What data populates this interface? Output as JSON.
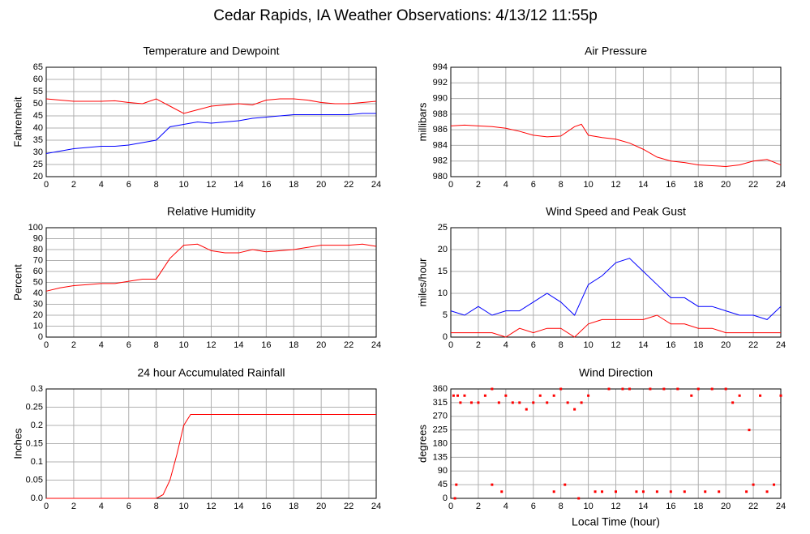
{
  "title": "Cedar Rapids, IA Weather Observations: 4/13/12 11:55p",
  "chart_data": [
    {
      "type": "line",
      "title": "Temperature and Dewpoint",
      "ylabel": "Fahrenheit",
      "x": [
        0,
        1,
        2,
        3,
        4,
        5,
        6,
        7,
        8,
        9,
        10,
        11,
        12,
        13,
        14,
        15,
        16,
        17,
        18,
        19,
        20,
        21,
        22,
        23,
        24
      ],
      "series": [
        {
          "color": "#ff0000",
          "values": [
            52,
            51.5,
            51,
            51,
            51,
            51.2,
            50.5,
            50,
            52,
            49,
            46,
            47.5,
            49,
            49.5,
            50,
            49.5,
            51.5,
            52,
            52,
            51.5,
            50.5,
            50,
            50,
            50.5,
            51
          ]
        },
        {
          "color": "#0000ff",
          "values": [
            29.5,
            30.5,
            31.5,
            32,
            32.5,
            32.5,
            33,
            34,
            35,
            40.5,
            41.5,
            42.5,
            42,
            42.5,
            43,
            44,
            44.5,
            45,
            45.5,
            45.5,
            45.5,
            45.5,
            45.5,
            46,
            46
          ]
        }
      ],
      "xlim": [
        0,
        24
      ],
      "xticks": [
        0,
        2,
        4,
        6,
        8,
        10,
        12,
        14,
        16,
        18,
        20,
        22,
        24
      ],
      "ylim": [
        20,
        65
      ],
      "yticks": [
        20,
        25,
        30,
        35,
        40,
        45,
        50,
        55,
        60,
        65
      ],
      "grid": true
    },
    {
      "type": "line",
      "title": "Air Pressure",
      "ylabel": "millibars",
      "x": [
        0,
        1,
        2,
        3,
        4,
        5,
        6,
        7,
        8,
        9,
        9.5,
        10,
        11,
        12,
        13,
        14,
        15,
        16,
        17,
        18,
        19,
        20,
        21,
        22,
        23,
        24
      ],
      "series": [
        {
          "color": "#ff0000",
          "values": [
            986.5,
            986.6,
            986.5,
            986.4,
            986.2,
            985.8,
            985.3,
            985.1,
            985.2,
            986.4,
            986.7,
            985.3,
            985.0,
            984.8,
            984.3,
            983.5,
            982.5,
            982.0,
            981.8,
            981.5,
            981.4,
            981.3,
            981.5,
            982.0,
            982.2,
            981.5
          ]
        }
      ],
      "xlim": [
        0,
        24
      ],
      "xticks": [
        0,
        2,
        4,
        6,
        8,
        10,
        12,
        14,
        16,
        18,
        20,
        22,
        24
      ],
      "ylim": [
        980,
        994
      ],
      "yticks": [
        980,
        982,
        984,
        986,
        988,
        990,
        992,
        994
      ],
      "grid": true
    },
    {
      "type": "line",
      "title": "Relative Humidity",
      "ylabel": "Percent",
      "x": [
        0,
        1,
        2,
        3,
        4,
        5,
        6,
        7,
        8,
        9,
        10,
        11,
        12,
        13,
        14,
        15,
        16,
        17,
        18,
        19,
        20,
        21,
        22,
        23,
        24
      ],
      "series": [
        {
          "color": "#ff0000",
          "values": [
            42,
            45,
            47,
            48,
            49,
            49,
            51,
            53,
            53,
            72,
            84,
            85,
            79,
            77,
            77,
            80,
            78,
            79,
            80,
            82,
            84,
            84,
            84,
            85,
            83
          ]
        }
      ],
      "xlim": [
        0,
        24
      ],
      "xticks": [
        0,
        2,
        4,
        6,
        8,
        10,
        12,
        14,
        16,
        18,
        20,
        22,
        24
      ],
      "ylim": [
        0,
        100
      ],
      "yticks": [
        0,
        10,
        20,
        30,
        40,
        50,
        60,
        70,
        80,
        90,
        100
      ],
      "grid": true
    },
    {
      "type": "line",
      "title": "Wind Speed and Peak Gust",
      "ylabel": "miles/hour",
      "x": [
        0,
        1,
        2,
        3,
        4,
        5,
        6,
        7,
        8,
        9,
        10,
        11,
        12,
        13,
        14,
        15,
        16,
        17,
        18,
        19,
        20,
        21,
        22,
        23,
        24
      ],
      "series": [
        {
          "color": "#ff0000",
          "values": [
            1,
            1,
            1,
            1,
            0,
            2,
            1,
            2,
            2,
            0,
            3,
            4,
            4,
            4,
            4,
            5,
            3,
            3,
            2,
            2,
            1,
            1,
            1,
            1,
            1
          ]
        },
        {
          "color": "#0000ff",
          "values": [
            6,
            5,
            7,
            5,
            6,
            6,
            8,
            10,
            8,
            5,
            12,
            14,
            17,
            18,
            15,
            12,
            9,
            9,
            7,
            7,
            6,
            5,
            5,
            4,
            7
          ]
        }
      ],
      "xlim": [
        0,
        24
      ],
      "xticks": [
        0,
        2,
        4,
        6,
        8,
        10,
        12,
        14,
        16,
        18,
        20,
        22,
        24
      ],
      "ylim": [
        0,
        25
      ],
      "yticks": [
        0,
        5,
        10,
        15,
        20,
        25
      ],
      "grid": true
    },
    {
      "type": "line",
      "title": "24 hour Accumulated Rainfall",
      "ylabel": "Inches",
      "x": [
        0,
        8,
        8.5,
        9,
        9.5,
        10,
        10.5,
        11,
        24
      ],
      "series": [
        {
          "color": "#ff0000",
          "values": [
            0,
            0,
            0.01,
            0.05,
            0.12,
            0.2,
            0.23,
            0.23,
            0.23
          ]
        }
      ],
      "xlim": [
        0,
        24
      ],
      "xticks": [
        0,
        2,
        4,
        6,
        8,
        10,
        12,
        14,
        16,
        18,
        20,
        22,
        24
      ],
      "ylim": [
        0,
        0.3
      ],
      "yticks": [
        {
          "value": 0,
          "label": "0.0"
        },
        0.05,
        0.1,
        0.15,
        0.2,
        0.25,
        0.3
      ],
      "grid": true
    },
    {
      "type": "scatter",
      "title": "Wind Direction",
      "ylabel": "degrees",
      "xlabel": "Local Time (hour)",
      "x": [
        0.2,
        0.3,
        0.4,
        0.5,
        0.7,
        1,
        1.5,
        2,
        2.5,
        3,
        3,
        3.5,
        3.7,
        4,
        4.5,
        5,
        5.5,
        6,
        6.5,
        7,
        7.5,
        7.5,
        8,
        8.3,
        8.5,
        9,
        9.3,
        9.5,
        10,
        10.5,
        11,
        11.5,
        12,
        12.5,
        13,
        13.5,
        14,
        14.5,
        15,
        15.5,
        16,
        16.5,
        17,
        17.5,
        18,
        18.5,
        19,
        19.5,
        20,
        20.5,
        21,
        21.5,
        21.7,
        22,
        22.5,
        23,
        23.5,
        24
      ],
      "series": [
        {
          "color": "#ff0000",
          "values": [
            338,
            0,
            45,
            338,
            315,
            338,
            315,
            315,
            338,
            360,
            45,
            315,
            22,
            338,
            315,
            315,
            293,
            315,
            338,
            315,
            338,
            22,
            360,
            45,
            315,
            293,
            0,
            315,
            338,
            22,
            22,
            360,
            22,
            360,
            360,
            22,
            22,
            360,
            22,
            360,
            22,
            360,
            22,
            338,
            360,
            22,
            360,
            22,
            360,
            315,
            338,
            22,
            225,
            45,
            338,
            22,
            45,
            338
          ]
        }
      ],
      "xlim": [
        0,
        24
      ],
      "xticks": [
        0,
        2,
        4,
        6,
        8,
        10,
        12,
        14,
        16,
        18,
        20,
        22,
        24
      ],
      "ylim": [
        0,
        360
      ],
      "yticks": [
        0,
        45,
        90,
        135,
        180,
        225,
        270,
        315,
        360
      ],
      "grid": true
    }
  ]
}
